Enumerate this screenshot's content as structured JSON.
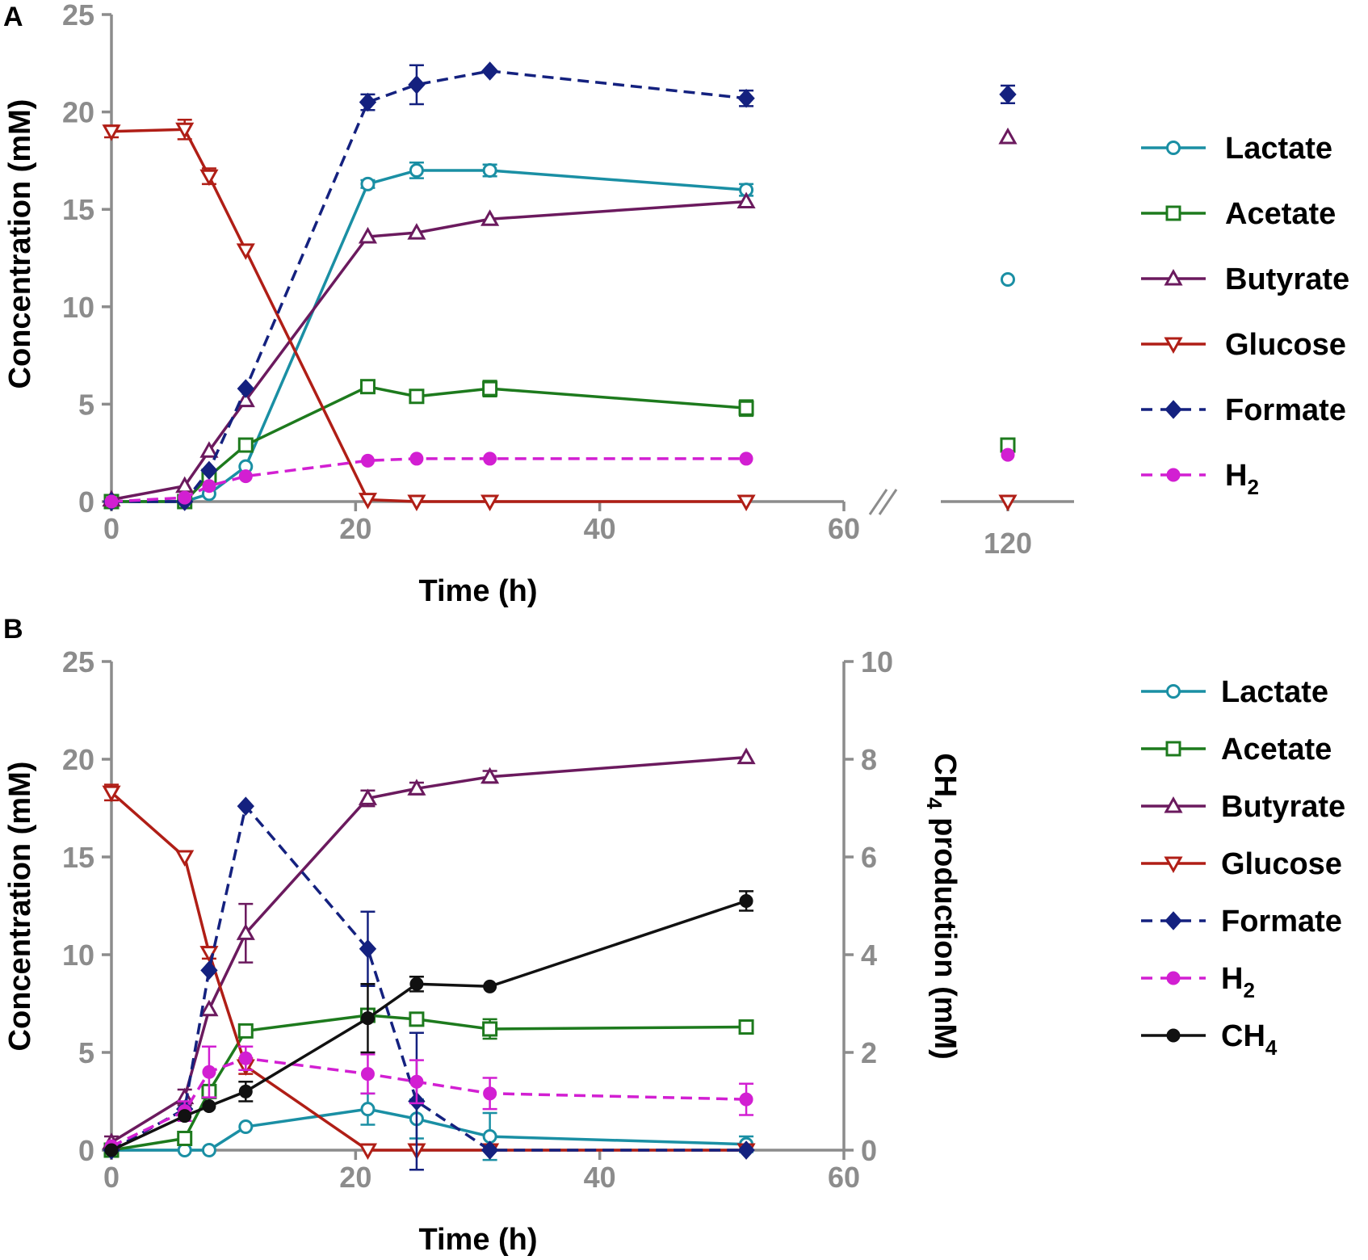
{
  "chart_data": [
    {
      "panel": "A",
      "type": "line",
      "xlabel": "Time (h)",
      "ylabel": "Concentration (mM)",
      "xlim": [
        0,
        60
      ],
      "ylim": [
        0,
        25
      ],
      "xticks": [
        "0",
        "20",
        "40",
        "60"
      ],
      "yticks": [
        "0",
        "5",
        "10",
        "15",
        "20",
        "25"
      ],
      "broken_axis_tick": "120",
      "broken_axis_value": 120,
      "colors": {
        "Lactate": "#1a8fa4",
        "Acetate": "#1d7a1d",
        "Butyrate": "#6b1a5e",
        "Glucose": "#b01e16",
        "Formate": "#14217f",
        "H2": "#d21fd2"
      },
      "series": [
        {
          "name": "Lactate",
          "legend_label": "Lactate",
          "marker": "circle-open",
          "dashed": false,
          "x": [
            0,
            6,
            8,
            11,
            21,
            25,
            31,
            52
          ],
          "y": [
            0,
            0,
            0.4,
            1.8,
            16.3,
            17.0,
            17.0,
            16.0
          ],
          "err": [
            0,
            0,
            0,
            0,
            0.2,
            0.4,
            0.3,
            0.3
          ],
          "x_end": 120,
          "y_end": 11.4
        },
        {
          "name": "Acetate",
          "legend_label": "Acetate",
          "marker": "square-open",
          "dashed": false,
          "x": [
            0,
            6,
            8,
            11,
            21,
            25,
            31,
            52
          ],
          "y": [
            0,
            0,
            1.3,
            2.9,
            5.9,
            5.4,
            5.8,
            4.8
          ],
          "err": [
            0,
            0,
            0,
            0.2,
            0.2,
            0.2,
            0.4,
            0.4
          ],
          "x_end": 120,
          "y_end": 2.9
        },
        {
          "name": "Butyrate",
          "legend_label": "Butyrate",
          "marker": "triangle-up-open",
          "dashed": false,
          "x": [
            0,
            6,
            8,
            11,
            21,
            25,
            31,
            52
          ],
          "y": [
            0.1,
            0.8,
            2.6,
            5.2,
            13.6,
            13.8,
            14.5,
            15.4
          ],
          "err": [
            0,
            0,
            0,
            0,
            0,
            0,
            0,
            0
          ],
          "x_end": 120,
          "y_end": 18.7
        },
        {
          "name": "Glucose",
          "legend_label": "Glucose",
          "marker": "triangle-down-open",
          "dashed": false,
          "x": [
            0,
            6,
            8,
            11,
            21,
            25,
            31,
            52
          ],
          "y": [
            19.0,
            19.1,
            16.7,
            12.9,
            0.1,
            0,
            0,
            0
          ],
          "err": [
            0.3,
            0.5,
            0.4,
            0,
            0,
            0,
            0,
            0
          ],
          "x_end": 120,
          "y_end": 0
        },
        {
          "name": "Formate",
          "legend_label": "Formate",
          "marker": "diamond-filled",
          "dashed": true,
          "x": [
            0,
            6,
            8,
            11,
            21,
            25,
            31,
            52
          ],
          "y": [
            0,
            0,
            1.6,
            5.8,
            20.5,
            21.4,
            22.1,
            20.7
          ],
          "err": [
            0,
            0,
            0,
            0,
            0.4,
            1.0,
            0,
            0.4
          ],
          "x_end": 120,
          "y_end": 20.9
        },
        {
          "name": "H2",
          "legend_label": "H",
          "legend_sub": "2",
          "marker": "circle-filled",
          "dashed": true,
          "x": [
            0,
            6,
            8,
            11,
            21,
            25,
            31,
            52
          ],
          "y": [
            0,
            0.2,
            0.8,
            1.3,
            2.1,
            2.2,
            2.2,
            2.2
          ],
          "err": [
            0,
            0,
            0,
            0,
            0,
            0,
            0,
            0
          ],
          "x_end": 120,
          "y_end": 2.4
        }
      ]
    },
    {
      "panel": "B",
      "type": "line",
      "xlabel": "Time (h)",
      "ylabel": "Concentration (mM)",
      "y2label": "CH",
      "y2label_sub": "4",
      "y2label_tail": " production (mM)",
      "xlim": [
        0,
        60
      ],
      "ylim": [
        0,
        25
      ],
      "y2lim": [
        0,
        10
      ],
      "xticks": [
        "0",
        "20",
        "40",
        "60"
      ],
      "yticks": [
        "0",
        "5",
        "10",
        "15",
        "20",
        "25"
      ],
      "y2ticks": [
        "0",
        "2",
        "4",
        "6",
        "8",
        "10"
      ],
      "colors": {
        "Lactate": "#1a8fa4",
        "Acetate": "#1d7a1d",
        "Butyrate": "#6b1a5e",
        "Glucose": "#b01e16",
        "Formate": "#14217f",
        "H2": "#d21fd2",
        "CH4": "#111111"
      },
      "series": [
        {
          "name": "Lactate",
          "legend_label": "Lactate",
          "marker": "circle-open",
          "dashed": false,
          "axis": "left",
          "x": [
            0,
            6,
            8,
            11,
            21,
            25,
            31,
            52
          ],
          "y": [
            0,
            0,
            0,
            1.2,
            2.1,
            1.6,
            0.7,
            0.3
          ],
          "err": [
            0,
            0,
            0,
            0,
            0.8,
            1.0,
            1.2,
            0.4
          ]
        },
        {
          "name": "Acetate",
          "legend_label": "Acetate",
          "marker": "square-open",
          "dashed": false,
          "axis": "left",
          "x": [
            0,
            6,
            8,
            11,
            21,
            25,
            31,
            52
          ],
          "y": [
            0,
            0.6,
            3.0,
            6.1,
            6.9,
            6.7,
            6.2,
            6.3
          ],
          "err": [
            0,
            0,
            0,
            0.2,
            0.3,
            0.2,
            0.5,
            0.2
          ]
        },
        {
          "name": "Butyrate",
          "legend_label": "Butyrate",
          "marker": "triangle-up-open",
          "dashed": false,
          "axis": "left",
          "x": [
            0,
            6,
            8,
            11,
            21,
            25,
            31,
            52
          ],
          "y": [
            0.4,
            2.7,
            7.2,
            11.1,
            18.0,
            18.5,
            19.1,
            20.1
          ],
          "err": [
            0.3,
            0.4,
            0,
            1.5,
            0.4,
            0.3,
            0.3,
            0
          ]
        },
        {
          "name": "Glucose",
          "legend_label": "Glucose",
          "marker": "triangle-down-open",
          "dashed": false,
          "axis": "left",
          "x": [
            0,
            6,
            8,
            11,
            21,
            25,
            31,
            52
          ],
          "y": [
            18.3,
            15.0,
            10.1,
            4.3,
            0,
            0,
            0,
            0
          ],
          "err": [
            0.4,
            0,
            0.3,
            0.4,
            0,
            0,
            0,
            0
          ]
        },
        {
          "name": "Formate",
          "legend_label": "Formate",
          "marker": "diamond-filled",
          "dashed": true,
          "axis": "left",
          "x": [
            0,
            6,
            8,
            11,
            21,
            25,
            31,
            52
          ],
          "y": [
            0,
            2.1,
            9.2,
            17.6,
            10.3,
            2.5,
            0,
            0
          ],
          "err": [
            0,
            0,
            0,
            0,
            1.9,
            3.5,
            0,
            0
          ]
        },
        {
          "name": "H2",
          "legend_label": "H",
          "legend_sub": "2",
          "marker": "circle-filled",
          "dashed": true,
          "axis": "left",
          "x": [
            0,
            6,
            8,
            11,
            21,
            25,
            31,
            52
          ],
          "y": [
            0.2,
            2.0,
            4.0,
            4.7,
            3.9,
            3.5,
            2.9,
            2.6
          ],
          "err": [
            0,
            0.5,
            1.3,
            0.6,
            1.0,
            1.1,
            0.8,
            0.8
          ]
        },
        {
          "name": "CH4",
          "legend_label": "CH",
          "legend_sub": "4",
          "marker": "circle-filled",
          "dashed": false,
          "axis": "right",
          "x": [
            0,
            6,
            8,
            11,
            21,
            25,
            31,
            52
          ],
          "y": [
            0,
            0.7,
            0.9,
            1.2,
            2.7,
            3.4,
            3.35,
            5.1
          ],
          "err": [
            0,
            0,
            0,
            0.2,
            0.7,
            0.15,
            0,
            0.2
          ]
        }
      ]
    }
  ]
}
